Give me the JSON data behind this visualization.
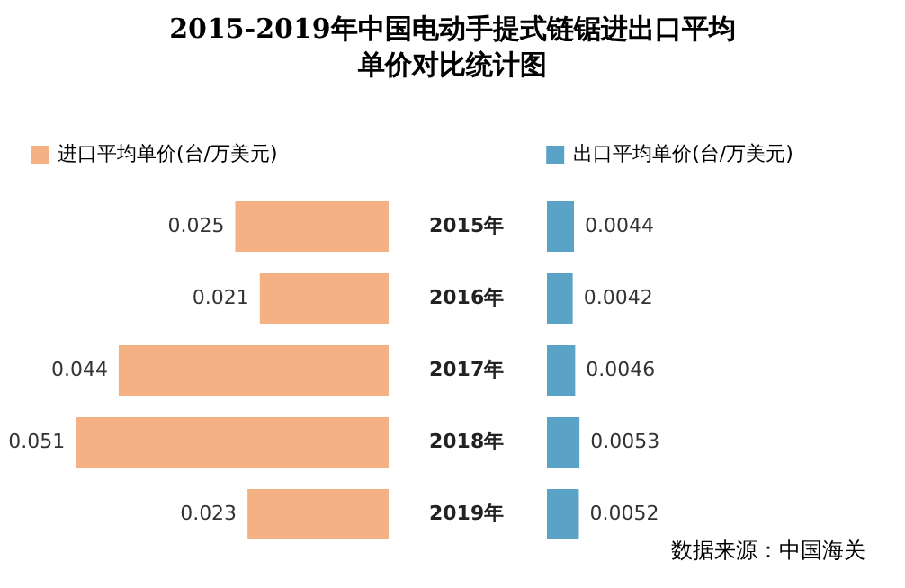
{
  "chart_data": [
    {
      "type": "bar",
      "orientation": "horizontal",
      "title": "2015-2019年中国电动手提式链锯进出口平均单价对比统计图",
      "categories": [
        "2015年",
        "2016年",
        "2017年",
        "2018年",
        "2019年"
      ],
      "series": [
        {
          "name": "进口平均单价(台/万美元)",
          "color": "#f4b183",
          "values": [
            0.025,
            0.021,
            0.044,
            0.051,
            0.023
          ]
        }
      ],
      "data_labels": true,
      "legend": "top left"
    },
    {
      "type": "bar",
      "orientation": "horizontal",
      "categories": [
        null,
        null,
        null,
        null,
        null
      ],
      "tick_labels": false,
      "series": [
        {
          "name": "出口平均单价(台/万美元)",
          "color": "#5ba3c6",
          "values": [
            0.0044,
            0.0042,
            0.0046,
            0.0053,
            0.0052
          ]
        }
      ],
      "data_labels": true,
      "legend": "top",
      "annotations": [
        "数据来源：中国海关"
      ]
    }
  ]
}
